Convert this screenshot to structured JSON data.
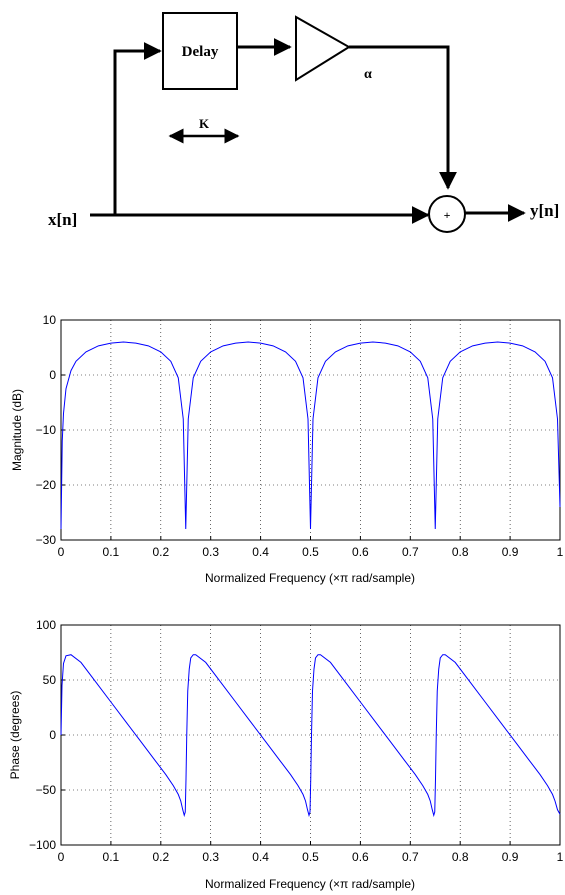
{
  "diagram": {
    "input_label": "x[n]",
    "output_label": "y[n]",
    "delay_label": "Delay",
    "gain_label": "α",
    "delay_amount_label": "K",
    "sum_label": "+"
  },
  "chart_data": [
    {
      "type": "line",
      "xlabel": "Normalized Frequency  (×π rad/sample)",
      "ylabel": "Magnitude (dB)",
      "xlim": [
        0,
        1
      ],
      "ylim": [
        -30,
        10
      ],
      "xticks": [
        "0",
        "0.1",
        "0.2",
        "0.3",
        "0.4",
        "0.5",
        "0.6",
        "0.7",
        "0.8",
        "0.9",
        "1"
      ],
      "yticks": [
        "−30",
        "−20",
        "−10",
        "0",
        "10"
      ],
      "grid": true,
      "color": "#0000ff",
      "series": [
        {
          "x": [
            0,
            0.0025,
            0.005,
            0.01,
            0.02,
            0.03,
            0.05,
            0.075,
            0.1,
            0.125,
            0.15,
            0.175,
            0.2,
            0.22,
            0.235,
            0.245,
            0.25,
            0.255,
            0.265,
            0.28,
            0.3,
            0.325,
            0.35,
            0.375,
            0.4,
            0.425,
            0.45,
            0.47,
            0.485,
            0.495,
            0.5,
            0.505,
            0.515,
            0.53,
            0.55,
            0.575,
            0.6,
            0.625,
            0.65,
            0.675,
            0.7,
            0.72,
            0.735,
            0.745,
            0.75,
            0.755,
            0.765,
            0.78,
            0.8,
            0.825,
            0.85,
            0.875,
            0.9,
            0.925,
            0.95,
            0.97,
            0.985,
            0.995,
            1
          ],
          "y": [
            -28,
            -12,
            -7,
            -2.5,
            0.8,
            2.5,
            4.2,
            5.3,
            5.8,
            6.0,
            5.8,
            5.3,
            4.2,
            2.5,
            -0.5,
            -8,
            -28,
            -8,
            -0.5,
            2.5,
            4.2,
            5.3,
            5.8,
            6.0,
            5.8,
            5.3,
            4.2,
            2.5,
            -0.5,
            -8,
            -28,
            -8,
            -0.5,
            2.5,
            4.2,
            5.3,
            5.8,
            6.0,
            5.8,
            5.3,
            4.2,
            2.5,
            -0.5,
            -8,
            -28,
            -8,
            -0.5,
            2.5,
            4.2,
            5.3,
            5.8,
            6.0,
            5.8,
            5.3,
            4.2,
            2.5,
            -0.5,
            -8,
            -24
          ]
        }
      ]
    },
    {
      "type": "line",
      "xlabel": "Normalized Frequency  (×π rad/sample)",
      "ylabel": "Phase (degrees)",
      "xlim": [
        0,
        1
      ],
      "ylim": [
        -100,
        100
      ],
      "xticks": [
        "0",
        "0.1",
        "0.2",
        "0.3",
        "0.4",
        "0.5",
        "0.6",
        "0.7",
        "0.8",
        "0.9",
        "1"
      ],
      "yticks": [
        "−100",
        "−50",
        "0",
        "50",
        "100"
      ],
      "grid": true,
      "color": "#0000ff",
      "series": [
        {
          "x": [
            0,
            0.002,
            0.005,
            0.01,
            0.02,
            0.04,
            0.07,
            0.1,
            0.13,
            0.16,
            0.19,
            0.21,
            0.225,
            0.235,
            0.24,
            0.244,
            0.247,
            0.249,
            0.2505,
            0.252,
            0.254,
            0.257,
            0.26,
            0.265,
            0.27,
            0.29,
            0.32,
            0.35,
            0.38,
            0.41,
            0.44,
            0.46,
            0.475,
            0.485,
            0.49,
            0.494,
            0.497,
            0.499,
            0.5005,
            0.502,
            0.504,
            0.507,
            0.51,
            0.515,
            0.52,
            0.54,
            0.57,
            0.6,
            0.63,
            0.66,
            0.69,
            0.71,
            0.725,
            0.735,
            0.74,
            0.744,
            0.747,
            0.749,
            0.7505,
            0.752,
            0.754,
            0.757,
            0.76,
            0.765,
            0.77,
            0.79,
            0.82,
            0.85,
            0.88,
            0.91,
            0.94,
            0.96,
            0.975,
            0.985,
            0.99,
            0.995,
            1
          ],
          "y": [
            0,
            45,
            65,
            72,
            73,
            66,
            48,
            30,
            12,
            -6,
            -24,
            -36,
            -46,
            -54,
            -60,
            -68,
            -73,
            -70,
            -40,
            0,
            40,
            60,
            70,
            73,
            73,
            66,
            48,
            30,
            12,
            -6,
            -24,
            -36,
            -46,
            -54,
            -60,
            -68,
            -73,
            -70,
            -40,
            0,
            40,
            60,
            70,
            73,
            73,
            66,
            48,
            30,
            12,
            -6,
            -24,
            -36,
            -46,
            -54,
            -60,
            -68,
            -73,
            -70,
            -40,
            0,
            40,
            60,
            70,
            73,
            73,
            66,
            48,
            30,
            12,
            -6,
            -24,
            -36,
            -46,
            -54,
            -60,
            -68,
            -72
          ]
        }
      ]
    }
  ]
}
